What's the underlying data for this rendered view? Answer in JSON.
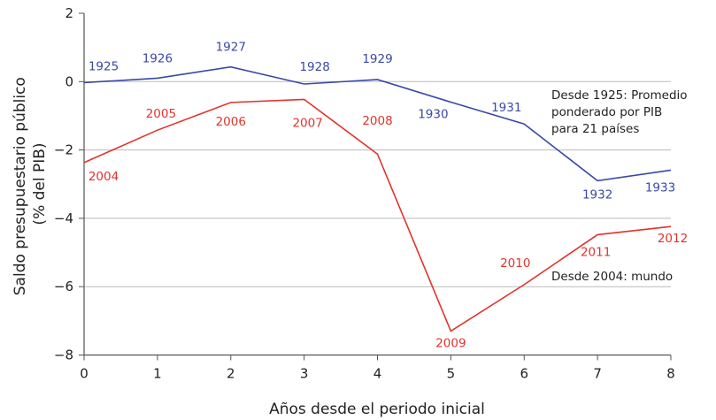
{
  "chart_data": {
    "type": "line",
    "xlabel": "Años desde el periodo inicial",
    "ylabel": "Saldo presupuestario público (% del PIB)",
    "ylabel_lines": [
      "Saldo presupuestario público",
      "(% del PIB)"
    ],
    "xlim": [
      0,
      8
    ],
    "ylim": [
      -8,
      2
    ],
    "xticks": [
      0,
      1,
      2,
      3,
      4,
      5,
      6,
      7,
      8
    ],
    "yticks": [
      2,
      0,
      -2,
      -4,
      -6,
      -8
    ],
    "ytick_labels": [
      "2",
      "0",
      "−2",
      "−4",
      "−6",
      "−8"
    ],
    "grid": "horizontal",
    "series": [
      {
        "name": "Desde 1925: Promedio ponderado por PIB para 21 países",
        "name_lines": [
          "Desde 1925: Promedio",
          "ponderado por PIB",
          "para 21 países"
        ],
        "color": "#3a48a6",
        "x": [
          0,
          1,
          2,
          3,
          4,
          5,
          6,
          7,
          8
        ],
        "y": [
          -0.03,
          0.1,
          0.43,
          -0.07,
          0.06,
          -0.6,
          -1.24,
          -2.9,
          -2.59
        ],
        "point_labels": [
          "1925",
          "1926",
          "1927",
          "1928",
          "1929",
          "1930",
          "1931",
          "1932",
          "1933"
        ]
      },
      {
        "name": "Desde 2004: mundo",
        "name_lines": [
          "Desde 2004: mundo"
        ],
        "color": "#e3322a",
        "x": [
          0,
          1,
          2,
          3,
          4,
          5,
          6,
          7,
          8
        ],
        "y": [
          -2.37,
          -1.42,
          -0.61,
          -0.52,
          -2.12,
          -7.3,
          -5.94,
          -4.48,
          -4.24
        ],
        "point_labels": [
          "2004",
          "2005",
          "2006",
          "2007",
          "2008",
          "2009",
          "2010",
          "2011",
          "2012"
        ]
      }
    ]
  }
}
